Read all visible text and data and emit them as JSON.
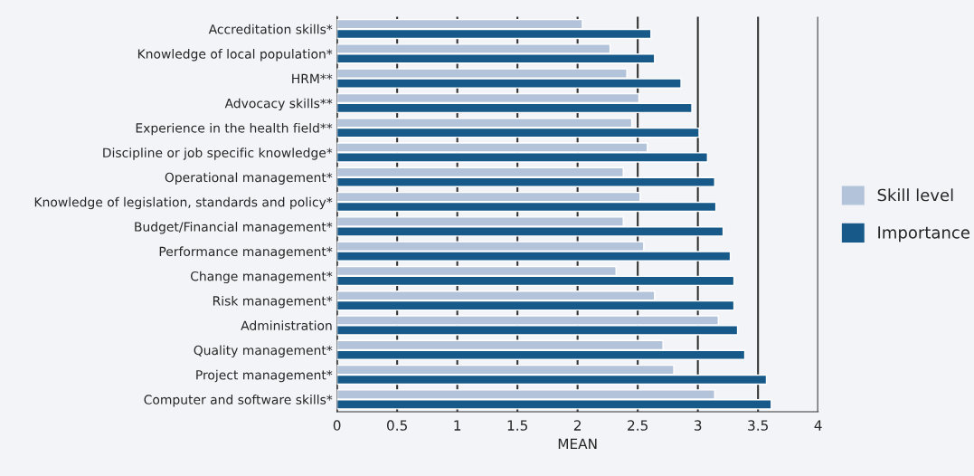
{
  "chart_data": {
    "type": "bar",
    "orientation": "horizontal",
    "xlabel": "MEAN",
    "categories": [
      "Accreditation skills*",
      "Knowledge of local population*",
      "HRM**",
      "Advocacy skills**",
      "Experience in the health field**",
      "Discipline or job specific knowledge*",
      "Operational management*",
      "Knowledge of legislation, standards and policy*",
      "Budget/Financial management*",
      "Performance management*",
      "Change management*",
      "Risk management*",
      "Administration",
      "Quality management*",
      "Project management*",
      "Computer and software skills*"
    ],
    "series": [
      {
        "name": "Skill level",
        "color": "#b3c3d9",
        "values": [
          2.04,
          2.27,
          2.41,
          2.51,
          2.45,
          2.58,
          2.38,
          2.52,
          2.38,
          2.55,
          2.32,
          2.64,
          3.17,
          2.71,
          2.8,
          3.14
        ]
      },
      {
        "name": "Importance",
        "color": "#175a8a",
        "values": [
          2.61,
          2.64,
          2.86,
          2.95,
          3.01,
          3.08,
          3.14,
          3.15,
          3.21,
          3.27,
          3.3,
          3.3,
          3.33,
          3.39,
          3.57,
          3.61
        ]
      }
    ],
    "xlim": [
      0,
      4
    ],
    "xticks": [
      0,
      0.5,
      1,
      1.5,
      2,
      2.5,
      3,
      3.5,
      4
    ],
    "grid": "x",
    "legend": "right"
  }
}
